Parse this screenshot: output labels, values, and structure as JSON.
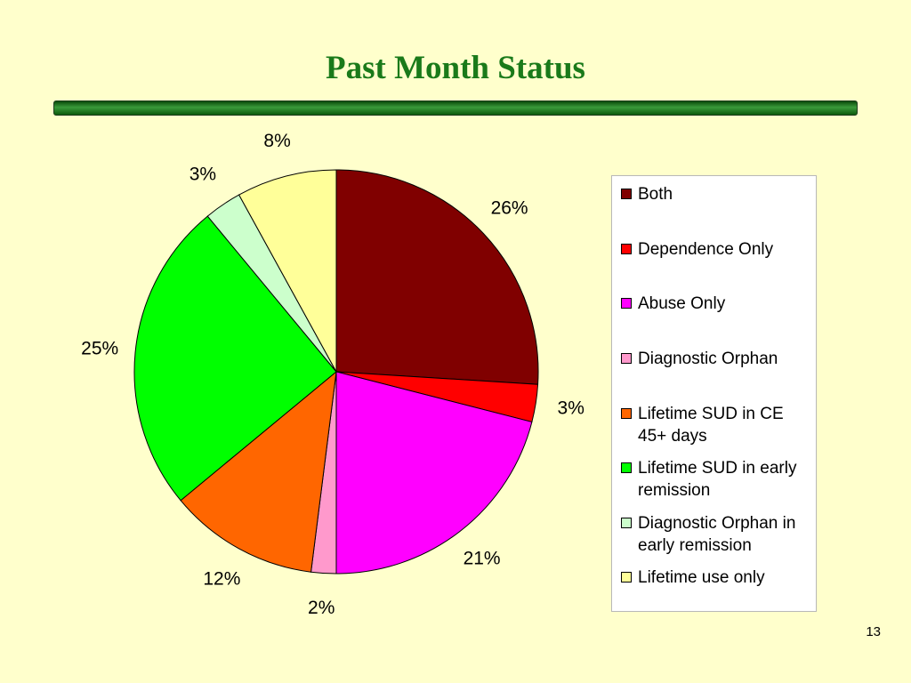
{
  "slide": {
    "title": "Past Month Status",
    "page_number": "13"
  },
  "chart_data": {
    "type": "pie",
    "title": "",
    "categories": [
      "Both",
      "Dependence Only",
      "Abuse Only",
      "Diagnostic Orphan",
      "Lifetime SUD in CE 45+ days",
      "Lifetime SUD in early remission",
      "Diagnostic Orphan in early remission",
      "Lifetime use only"
    ],
    "values": [
      26,
      3,
      21,
      2,
      12,
      25,
      3,
      8
    ],
    "labels": [
      "26%",
      "3%",
      "21%",
      "2%",
      "12%",
      "25%",
      "3%",
      "8%"
    ],
    "colors": [
      "#800000",
      "#ff0000",
      "#ff00ff",
      "#ff99cc",
      "#ff6600",
      "#00ff00",
      "#ccffcc",
      "#ffff99"
    ],
    "start": "12 o'clock",
    "direction": "clockwise",
    "legend_position": "right"
  }
}
